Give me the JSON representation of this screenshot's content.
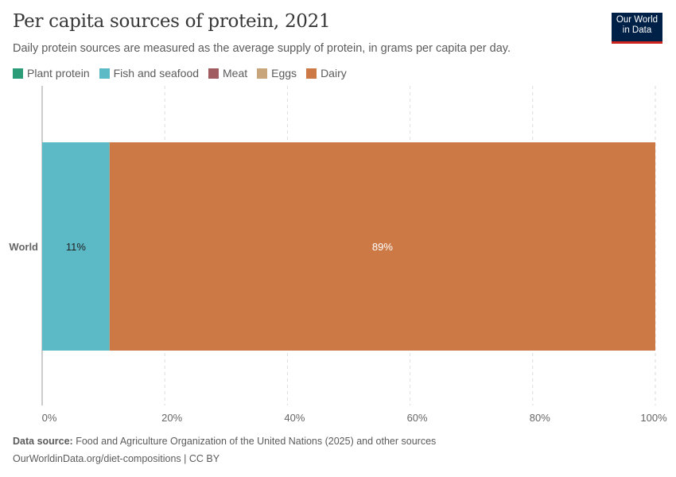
{
  "header": {
    "title": "Per capita sources of protein, 2021",
    "subtitle": "Daily protein sources are measured as the average supply of protein, in grams per capita per day.",
    "logo": "Our World in Data"
  },
  "footer": {
    "source_label": "Data source:",
    "source_text": "Food and Agriculture Organization of the United Nations (2025) and other sources",
    "url_line": "OurWorldinData.org/diet-compositions | CC BY"
  },
  "chart_data": {
    "type": "bar",
    "stacked": true,
    "orientation": "horizontal",
    "relative": true,
    "title": "Per capita sources of protein, 2021",
    "categories": [
      "World"
    ],
    "legend_position": "top-left",
    "legend": [
      {
        "name": "Plant protein",
        "color": "#2c9b78"
      },
      {
        "name": "Fish and seafood",
        "color": "#5bbac6"
      },
      {
        "name": "Meat",
        "color": "#a15c62"
      },
      {
        "name": "Eggs",
        "color": "#c9a57b"
      },
      {
        "name": "Dairy",
        "color": "#cd7945"
      }
    ],
    "series": [
      {
        "name": "Fish and seafood",
        "values": [
          11
        ],
        "label": "11%",
        "color": "#5bbac6"
      },
      {
        "name": "Dairy",
        "values": [
          89
        ],
        "label": "89%",
        "color": "#cd7945"
      }
    ],
    "xlim": [
      0,
      100
    ],
    "xticks": [
      "0%",
      "20%",
      "40%",
      "60%",
      "80%",
      "100%"
    ],
    "grid": "vertical dashed"
  }
}
